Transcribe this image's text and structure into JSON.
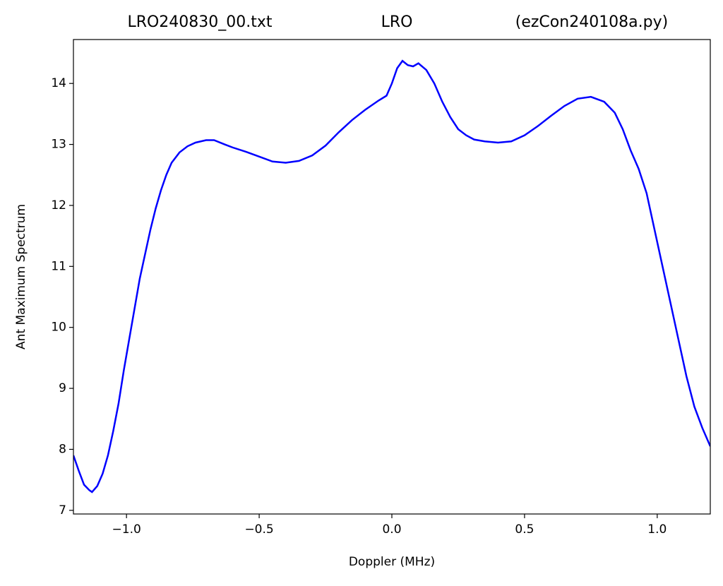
{
  "chart_data": {
    "type": "line",
    "title": [
      "LRO240830_00.txt",
      "LRO",
      "(ezCon240108a.py)"
    ],
    "xlabel": "Doppler (MHz)",
    "ylabel": "Ant Maximum Spectrum",
    "x": [
      -1.2,
      -1.18,
      -1.16,
      -1.14,
      -1.13,
      -1.11,
      -1.09,
      -1.07,
      -1.05,
      -1.03,
      -1.01,
      -0.99,
      -0.97,
      -0.95,
      -0.93,
      -0.91,
      -0.89,
      -0.87,
      -0.85,
      -0.83,
      -0.8,
      -0.77,
      -0.74,
      -0.7,
      -0.67,
      -0.63,
      -0.6,
      -0.55,
      -0.5,
      -0.45,
      -0.4,
      -0.35,
      -0.3,
      -0.25,
      -0.2,
      -0.15,
      -0.1,
      -0.05,
      -0.02,
      0.0,
      0.02,
      0.04,
      0.06,
      0.08,
      0.1,
      0.13,
      0.16,
      0.19,
      0.22,
      0.25,
      0.28,
      0.31,
      0.35,
      0.4,
      0.45,
      0.5,
      0.55,
      0.6,
      0.65,
      0.7,
      0.75,
      0.8,
      0.84,
      0.87,
      0.9,
      0.93,
      0.96,
      0.99,
      1.02,
      1.05,
      1.08,
      1.11,
      1.14,
      1.17,
      1.2
    ],
    "series": [
      {
        "name": "LRO",
        "color": "#0000ff",
        "values": [
          7.9,
          7.65,
          7.42,
          7.33,
          7.3,
          7.4,
          7.6,
          7.9,
          8.3,
          8.75,
          9.3,
          9.8,
          10.3,
          10.8,
          11.2,
          11.6,
          11.95,
          12.25,
          12.5,
          12.7,
          12.87,
          12.97,
          13.03,
          13.07,
          13.07,
          13.0,
          12.95,
          12.88,
          12.8,
          12.72,
          12.7,
          12.73,
          12.82,
          12.98,
          13.2,
          13.4,
          13.57,
          13.72,
          13.8,
          14.0,
          14.25,
          14.37,
          14.3,
          14.28,
          14.33,
          14.22,
          14.0,
          13.7,
          13.45,
          13.25,
          13.15,
          13.08,
          13.05,
          13.03,
          13.05,
          13.15,
          13.3,
          13.47,
          13.63,
          13.75,
          13.78,
          13.7,
          13.52,
          13.25,
          12.9,
          12.6,
          12.2,
          11.6,
          11.0,
          10.4,
          9.8,
          9.2,
          8.7,
          8.35,
          8.05
        ]
      }
    ],
    "xlim": [
      -1.2,
      1.2
    ],
    "xticks": [
      {
        "value": -1.0,
        "label": "−1.0"
      },
      {
        "value": -0.5,
        "label": "−0.5"
      },
      {
        "value": 0.0,
        "label": "0.0"
      },
      0.5,
      {
        "value": 1.0,
        "label": "1.0"
      }
    ],
    "ylim": [
      6.94,
      14.72
    ],
    "yticks": [
      7,
      8,
      9,
      10,
      11,
      12,
      13,
      14
    ],
    "grid": false
  }
}
